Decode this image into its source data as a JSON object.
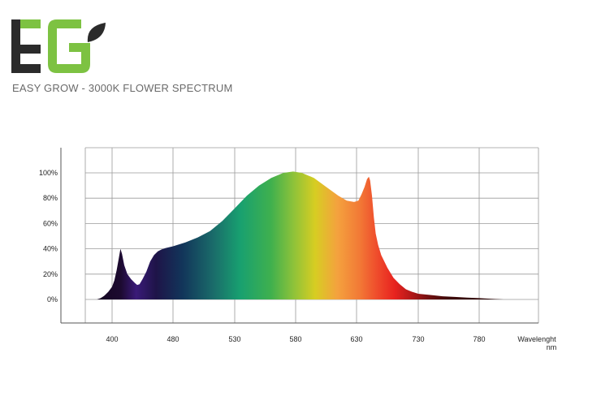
{
  "brand": {
    "logo_text": "EG",
    "logo_colors": {
      "dark": "#2b2b2b",
      "green": "#7dc242"
    },
    "subtitle": "EASY GROW - 3000K FLOWER SPECTRUM"
  },
  "chart_data": {
    "type": "area",
    "title": "",
    "xlabel": "Wavelenght",
    "xunit": "nm",
    "ylabel": "",
    "xlim": [
      380,
      800
    ],
    "ylim": [
      0,
      100
    ],
    "x_ticks": [
      400,
      480,
      530,
      580,
      630,
      730,
      780
    ],
    "y_ticks": [
      "0%",
      "20%",
      "40%",
      "60%",
      "80%",
      "100%"
    ],
    "grid": true,
    "series": [
      {
        "points": [
          [
            380,
            0
          ],
          [
            385,
            1
          ],
          [
            390,
            3
          ],
          [
            395,
            6
          ],
          [
            400,
            10
          ],
          [
            403,
            15
          ],
          [
            406,
            23
          ],
          [
            409,
            33
          ],
          [
            411,
            40
          ],
          [
            413,
            36
          ],
          [
            416,
            27
          ],
          [
            420,
            20
          ],
          [
            425,
            16
          ],
          [
            430,
            13
          ],
          [
            433,
            11.5
          ],
          [
            436,
            12
          ],
          [
            440,
            16
          ],
          [
            445,
            22
          ],
          [
            450,
            30
          ],
          [
            455,
            35
          ],
          [
            460,
            38
          ],
          [
            465,
            39.5
          ],
          [
            470,
            40.5
          ],
          [
            480,
            42
          ],
          [
            490,
            45
          ],
          [
            500,
            49
          ],
          [
            510,
            54
          ],
          [
            520,
            62
          ],
          [
            530,
            72
          ],
          [
            540,
            82
          ],
          [
            550,
            90
          ],
          [
            560,
            96
          ],
          [
            570,
            100
          ],
          [
            578,
            101
          ],
          [
            585,
            100
          ],
          [
            595,
            96
          ],
          [
            605,
            89
          ],
          [
            615,
            82
          ],
          [
            622,
            78
          ],
          [
            628,
            77
          ],
          [
            633,
            78
          ],
          [
            638,
            83
          ],
          [
            643,
            89
          ],
          [
            647,
            95
          ],
          [
            650,
            97
          ],
          [
            652,
            94
          ],
          [
            655,
            82
          ],
          [
            658,
            65
          ],
          [
            661,
            52
          ],
          [
            665,
            43
          ],
          [
            670,
            35
          ],
          [
            680,
            25
          ],
          [
            690,
            17
          ],
          [
            700,
            12
          ],
          [
            710,
            8
          ],
          [
            720,
            6
          ],
          [
            730,
            4.5
          ],
          [
            740,
            3.5
          ],
          [
            750,
            2.5
          ],
          [
            760,
            2
          ],
          [
            770,
            1.5
          ],
          [
            780,
            1
          ],
          [
            790,
            0.5
          ],
          [
            800,
            0
          ]
        ]
      }
    ]
  }
}
